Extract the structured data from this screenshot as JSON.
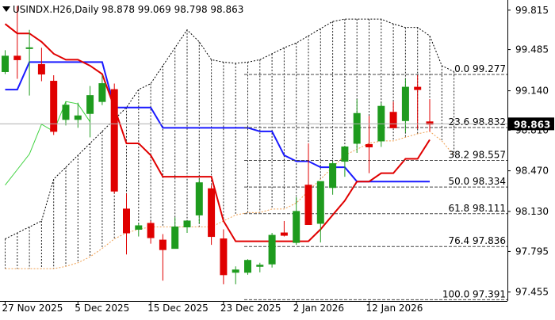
{
  "header": {
    "symbol": "USINDX.H26,Daily",
    "ohlc": "98.878 99.069 98.798 98.863"
  },
  "colors": {
    "bull": "#1e9b1e",
    "bear": "#e00000",
    "kijun": "#e00000",
    "tenkan": "#1a1aff",
    "chikou": "#3fd23f",
    "senkou_a": "#000000",
    "senkou_b": "#f0a050",
    "fib": "#444444",
    "price_tag_bg": "#000000",
    "price_tag_fg": "#ffffff"
  },
  "chart_data": {
    "type": "candlestick",
    "title": "USINDX.H26,Daily",
    "ylim": [
      97.38,
      99.9
    ],
    "y_ticks": [
      "99.815",
      "99.485",
      "99.140",
      "98.810",
      "98.470",
      "98.130",
      "97.795",
      "97.455"
    ],
    "x_ticks": [
      {
        "label": "27 Nov 2025",
        "index": 0
      },
      {
        "label": "5 Dec 2025",
        "index": 6
      },
      {
        "label": "15 Dec 2025",
        "index": 12
      },
      {
        "label": "23 Dec 2025",
        "index": 18
      },
      {
        "label": "2 Jan 2026",
        "index": 24
      },
      {
        "label": "12 Jan 2026",
        "index": 30
      }
    ],
    "current_price": "98.863",
    "candles": [
      {
        "o": 99.3,
        "h": 99.48,
        "l": 99.28,
        "c": 99.43
      },
      {
        "o": 99.43,
        "h": 99.85,
        "l": 99.24,
        "c": 99.4
      },
      {
        "o": 99.5,
        "h": 99.65,
        "l": 99.1,
        "c": 99.5
      },
      {
        "o": 99.36,
        "h": 99.5,
        "l": 99.22,
        "c": 99.28
      },
      {
        "o": 99.22,
        "h": 99.27,
        "l": 98.77,
        "c": 98.8
      },
      {
        "o": 98.9,
        "h": 99.05,
        "l": 98.85,
        "c": 99.02
      },
      {
        "o": 98.9,
        "h": 99.04,
        "l": 98.83,
        "c": 98.93
      },
      {
        "o": 98.95,
        "h": 99.18,
        "l": 98.75,
        "c": 99.1
      },
      {
        "o": 99.05,
        "h": 99.27,
        "l": 99.02,
        "c": 99.2
      },
      {
        "o": 99.15,
        "h": 99.2,
        "l": 98.28,
        "c": 98.3
      },
      {
        "o": 98.15,
        "h": 98.28,
        "l": 97.77,
        "c": 97.95
      },
      {
        "o": 97.98,
        "h": 98.03,
        "l": 97.92,
        "c": 98.01
      },
      {
        "o": 98.03,
        "h": 98.05,
        "l": 97.86,
        "c": 97.91
      },
      {
        "o": 97.89,
        "h": 97.94,
        "l": 97.55,
        "c": 97.81
      },
      {
        "o": 97.82,
        "h": 98.08,
        "l": 97.82,
        "c": 98.0
      },
      {
        "o": 98.0,
        "h": 98.05,
        "l": 97.95,
        "c": 98.05
      },
      {
        "o": 98.1,
        "h": 98.4,
        "l": 98.03,
        "c": 98.37
      },
      {
        "o": 98.32,
        "h": 98.35,
        "l": 97.85,
        "c": 97.92
      },
      {
        "o": 97.9,
        "h": 97.98,
        "l": 97.52,
        "c": 97.6
      },
      {
        "o": 97.62,
        "h": 97.67,
        "l": 97.52,
        "c": 97.64
      },
      {
        "o": 97.62,
        "h": 97.73,
        "l": 97.6,
        "c": 97.72
      },
      {
        "o": 97.67,
        "h": 97.7,
        "l": 97.62,
        "c": 97.68
      },
      {
        "o": 97.69,
        "h": 97.95,
        "l": 97.66,
        "c": 97.93
      },
      {
        "o": 97.95,
        "h": 98.05,
        "l": 97.92,
        "c": 97.93
      },
      {
        "o": 97.87,
        "h": 98.25,
        "l": 97.85,
        "c": 98.13
      },
      {
        "o": 98.35,
        "h": 98.7,
        "l": 98.02,
        "c": 98.02
      },
      {
        "o": 98.03,
        "h": 98.38,
        "l": 97.87,
        "c": 98.38
      },
      {
        "o": 98.33,
        "h": 98.55,
        "l": 98.27,
        "c": 98.53
      },
      {
        "o": 98.55,
        "h": 98.68,
        "l": 98.42,
        "c": 98.67
      },
      {
        "o": 98.7,
        "h": 99.07,
        "l": 98.62,
        "c": 98.95
      },
      {
        "o": 98.69,
        "h": 98.93,
        "l": 98.45,
        "c": 98.67
      },
      {
        "o": 98.72,
        "h": 99.04,
        "l": 98.67,
        "c": 99.01
      },
      {
        "o": 98.96,
        "h": 99.05,
        "l": 98.83,
        "c": 98.83
      },
      {
        "o": 98.89,
        "h": 99.24,
        "l": 98.79,
        "c": 99.17
      },
      {
        "o": 99.17,
        "h": 99.27,
        "l": 98.82,
        "c": 99.15
      },
      {
        "o": 98.88,
        "h": 99.07,
        "l": 98.8,
        "c": 98.86
      }
    ],
    "indicators": {
      "tenkan": [
        99.15,
        99.15,
        99.38,
        99.38,
        99.38,
        99.38,
        99.38,
        99.38,
        99.38,
        99.0,
        99.0,
        99.0,
        99.0,
        98.83,
        98.83,
        98.83,
        98.83,
        98.83,
        98.83,
        98.83,
        98.83,
        98.8,
        98.8,
        98.6,
        98.55,
        98.55,
        98.5,
        98.5,
        98.5,
        98.38,
        98.38,
        98.38,
        98.38,
        98.38,
        98.38,
        98.38
      ],
      "kijun": [
        99.7,
        99.62,
        99.62,
        99.55,
        99.45,
        99.4,
        99.4,
        99.35,
        99.28,
        99.0,
        98.7,
        98.7,
        98.6,
        98.42,
        98.42,
        98.42,
        98.42,
        98.42,
        98.05,
        97.88,
        97.88,
        97.88,
        97.88,
        97.88,
        97.88,
        97.88,
        97.98,
        98.1,
        98.22,
        98.38,
        98.38,
        98.45,
        98.45,
        98.57,
        98.57,
        98.73
      ],
      "chikou": [
        98.35,
        98.48,
        98.61,
        98.86,
        98.8,
        99.05,
        99.03,
        98.88
      ],
      "senkou_a": [
        97.9,
        97.95,
        98.0,
        98.05,
        98.4,
        98.5,
        98.6,
        98.7,
        98.8,
        98.9,
        99.0,
        99.15,
        99.2,
        99.35,
        99.5,
        99.65,
        99.55,
        99.4,
        99.38,
        99.37,
        99.38,
        99.4,
        99.45,
        99.5,
        99.54,
        99.6,
        99.66,
        99.72,
        99.74,
        99.74,
        99.74,
        99.74,
        99.7,
        99.67,
        99.67,
        99.6,
        99.35,
        99.3
      ],
      "senkou_b": [
        97.65,
        97.65,
        97.65,
        97.65,
        97.65,
        97.67,
        97.7,
        97.75,
        97.82,
        97.9,
        97.95,
        97.98,
        98.0,
        98.0,
        98.0,
        98.0,
        98.0,
        98.0,
        98.05,
        98.1,
        98.12,
        98.12,
        98.15,
        98.15,
        98.2,
        98.3,
        98.4,
        98.5,
        98.6,
        98.65,
        98.7,
        98.72,
        98.72,
        98.75,
        98.78,
        98.8,
        98.72,
        98.6
      ]
    },
    "fib_levels": [
      {
        "label": "0.0 99.277",
        "value": 99.277
      },
      {
        "label": "23.6 98.832",
        "value": 98.832
      },
      {
        "label": "38.2 98.557",
        "value": 98.557
      },
      {
        "label": "50.0 98.334",
        "value": 98.334
      },
      {
        "label": "61.8 98.111",
        "value": 98.111
      },
      {
        "label": "76.4 97.836",
        "value": 97.836
      },
      {
        "label": "100.0 97.391",
        "value": 97.391
      }
    ]
  }
}
